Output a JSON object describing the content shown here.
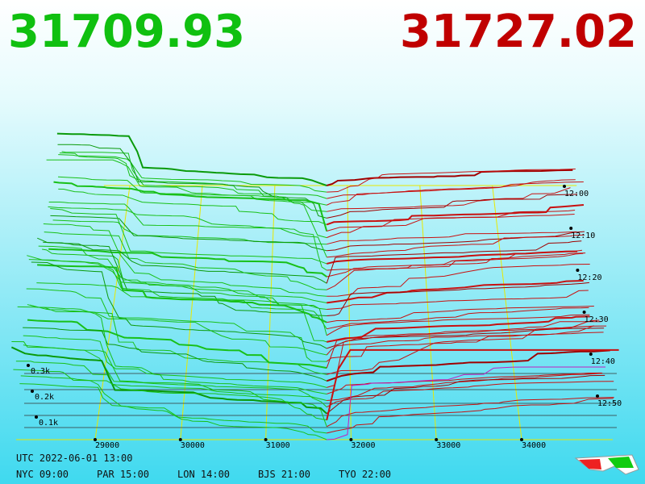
{
  "header": {
    "bid": 31709.93,
    "ask": 31727.02
  },
  "axis": {
    "price_ticks": [
      29000,
      30000,
      31000,
      32000,
      33000,
      34000
    ],
    "time_ticks": [
      "12:00",
      "12:10",
      "12:20",
      "12:30",
      "12:40",
      "12:50"
    ],
    "depth_ticks": [
      "0.3k",
      "0.2k",
      "0.1k"
    ]
  },
  "footer": {
    "utc": "UTC 2022-06-01 13:00",
    "zones": [
      "NYC 09:00",
      "PAR 15:00",
      "LON 14:00",
      "BJS 21:00",
      "TYO 22:00"
    ]
  }
}
